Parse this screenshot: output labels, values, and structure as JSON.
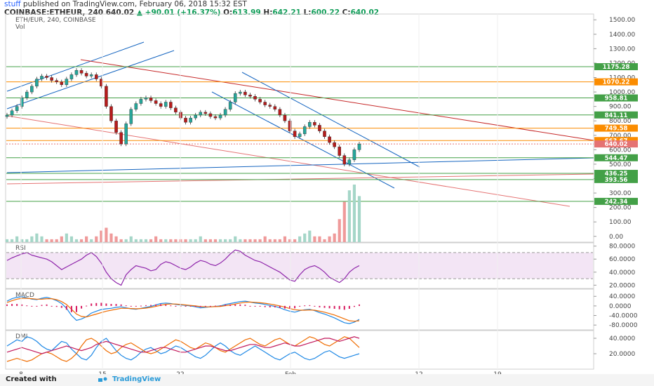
{
  "header": {
    "user": "stuff",
    "published": "published on TradingView.com, February 06, 2018 15:32 EST",
    "symbol": "COINBASE:ETHEUR, 240",
    "last": "640.02",
    "change": "+90.01 (+16.37%)",
    "o_label": "O:",
    "o_value": "613.99",
    "h_label": "H:",
    "h_value": "642.21",
    "l_label": "L:",
    "l_value": "600.22",
    "c_label": "C:",
    "c_value": "640.02"
  },
  "pane_labels": {
    "main": "ETH/EUR, 240, COINBASE",
    "vol": "Vol",
    "rsi": "RSI",
    "macd": "MACD",
    "dmi": "DMI"
  },
  "footer": {
    "created": "Created with",
    "brand": "TradingView"
  },
  "colors": {
    "price_up": "#26a69a",
    "price_down": "#b71c1c",
    "trend_blue": "#1565c0",
    "trend_red": "#c62828",
    "level_green": "#43a047",
    "level_orange": "#fb8c00",
    "rsi_line": "#8e24aa",
    "rsi_band": "#f3e5f5",
    "macd_blue": "#1e88e5",
    "macd_orange": "#ef6c00",
    "macd_hist": "#d81b60",
    "dmi_blue": "#1e88e5",
    "dmi_orange": "#ef6c00",
    "dmi_magenta": "#c2185b"
  },
  "chart_data": [
    {
      "type": "line",
      "title": "ETH/EUR, 240, COINBASE",
      "ylim": [
        -40,
        1540
      ],
      "y_ticks": [
        0,
        100,
        200,
        300,
        400,
        500,
        600,
        700,
        800,
        900,
        1000,
        1100,
        1200,
        1300,
        1400,
        1500
      ],
      "y_tick_labels": [
        "0.00",
        "100.00",
        "200.00",
        "300.00",
        "400.00",
        "500.00",
        "600.00",
        "700.00",
        "800.00",
        "900.00",
        "1000.00",
        "1100.00",
        "1200.00",
        "1300.00",
        "1400.00",
        "1500.00"
      ],
      "x_tick_labels": [
        "8",
        "15",
        "22",
        "Feb",
        "12",
        "19"
      ],
      "levels": [
        {
          "value": 1175.28,
          "label": "1175.28",
          "color": "#43a047"
        },
        {
          "value": 1070.22,
          "label": "1070.22",
          "color": "#fb8c00"
        },
        {
          "value": 958.81,
          "label": "958.81",
          "color": "#43a047"
        },
        {
          "value": 841.11,
          "label": "841.11",
          "color": "#43a047"
        },
        {
          "value": 749.58,
          "label": "749.58",
          "color": "#fb8c00"
        },
        {
          "value": 663.67,
          "label": "663.67",
          "color": "#fb8c00"
        },
        {
          "value": 640.02,
          "label": "640.02",
          "color": "#e57373"
        },
        {
          "value": 544.47,
          "label": "544.47",
          "color": "#43a047"
        },
        {
          "value": 436.25,
          "label": "436.25",
          "color": "#43a047"
        },
        {
          "value": 393.56,
          "label": "393.56",
          "color": "#43a047"
        },
        {
          "value": 242.34,
          "label": "242.34",
          "color": "#43a047"
        }
      ],
      "series": [
        {
          "values": [
            840,
            870,
            900,
            960,
            1000,
            1040,
            1090,
            1110,
            1100,
            1080,
            1070,
            1050,
            1090,
            1120,
            1150,
            1130,
            1110,
            1120,
            1090,
            1040,
            900,
            800,
            720,
            640,
            780,
            880,
            920,
            950,
            960,
            940,
            920,
            900,
            930,
            890,
            860,
            820,
            790,
            820,
            840,
            860,
            850,
            830,
            820,
            840,
            880,
            930,
            990,
            1000,
            980,
            970,
            950,
            930,
            910,
            900,
            880,
            840,
            800,
            730,
            690,
            710,
            760,
            790,
            770,
            730,
            690,
            650,
            620,
            560,
            500,
            530,
            600,
            640
          ]
        }
      ]
    },
    {
      "type": "bar",
      "title": "Vol",
      "values": [
        1,
        1,
        2,
        1,
        1,
        2,
        3,
        2,
        1,
        1,
        1,
        2,
        3,
        2,
        1,
        1,
        2,
        1,
        2,
        4,
        5,
        3,
        2,
        1,
        1,
        2,
        1,
        1,
        1,
        1,
        2,
        1,
        1,
        1,
        1,
        1,
        1,
        1,
        1,
        2,
        1,
        1,
        1,
        1,
        1,
        1,
        2,
        1,
        1,
        1,
        1,
        1,
        2,
        1,
        1,
        1,
        2,
        1,
        1,
        2,
        3,
        4,
        2,
        2,
        1,
        2,
        3,
        8,
        14,
        18,
        20,
        16
      ]
    },
    {
      "type": "line",
      "title": "RSI",
      "ylim": [
        15,
        85
      ],
      "y_ticks": [
        20,
        40,
        60,
        80
      ],
      "y_tick_labels": [
        "20.0000",
        "40.0000",
        "60.0000",
        "80.0000"
      ],
      "series": [
        {
          "values": [
            58,
            62,
            65,
            68,
            70,
            66,
            64,
            62,
            60,
            56,
            50,
            44,
            48,
            52,
            56,
            60,
            66,
            70,
            64,
            54,
            40,
            30,
            24,
            20,
            36,
            44,
            50,
            48,
            46,
            42,
            44,
            52,
            56,
            54,
            50,
            46,
            44,
            48,
            54,
            58,
            56,
            52,
            50,
            54,
            60,
            68,
            74,
            72,
            66,
            62,
            58,
            56,
            52,
            48,
            44,
            40,
            34,
            28,
            26,
            36,
            44,
            48,
            50,
            46,
            40,
            32,
            28,
            24,
            30,
            40,
            46,
            50
          ]
        }
      ]
    },
    {
      "type": "line",
      "title": "MACD",
      "ylim": [
        -100,
        70
      ],
      "y_ticks": [
        -80,
        -40,
        0,
        40
      ],
      "y_tick_labels": [
        "-80.0000",
        "-40.0000",
        "0.0000",
        "40.0000"
      ],
      "series": [
        {
          "values": [
            20,
            30,
            36,
            38,
            34,
            28,
            26,
            32,
            36,
            30,
            22,
            10,
            -10,
            -40,
            -60,
            -55,
            -45,
            -30,
            -22,
            -15,
            -12,
            -10,
            -6,
            -4,
            -8,
            -12,
            -14,
            -10,
            -6,
            -2,
            4,
            10,
            12,
            10,
            6,
            4,
            2,
            0,
            -4,
            -8,
            -6,
            -4,
            -2,
            0,
            6,
            10,
            14,
            18,
            20,
            16,
            12,
            10,
            6,
            2,
            -2,
            -8,
            -16,
            -22,
            -26,
            -20,
            -16,
            -14,
            -20,
            -28,
            -34,
            -42,
            -50,
            -60,
            -70,
            -74,
            -68,
            -56
          ]
        },
        {
          "values": [
            14,
            22,
            28,
            32,
            32,
            30,
            28,
            28,
            30,
            30,
            26,
            18,
            6,
            -14,
            -34,
            -44,
            -46,
            -40,
            -34,
            -28,
            -22,
            -18,
            -14,
            -10,
            -10,
            -11,
            -12,
            -11,
            -9,
            -6,
            -2,
            3,
            7,
            8,
            8,
            6,
            4,
            2,
            0,
            -3,
            -4,
            -4,
            -3,
            -2,
            1,
            4,
            8,
            12,
            15,
            16,
            15,
            13,
            11,
            8,
            4,
            0,
            -5,
            -11,
            -16,
            -18,
            -18,
            -17,
            -18,
            -22,
            -26,
            -32,
            -38,
            -46,
            -54,
            -62,
            -64,
            -62
          ]
        }
      ]
    },
    {
      "type": "line",
      "title": "DMI",
      "ylim": [
        0,
        50
      ],
      "y_ticks": [
        20,
        40
      ],
      "y_tick_labels": [
        "20.0000",
        "40.0000"
      ],
      "series": [
        {
          "values": [
            30,
            34,
            38,
            36,
            42,
            40,
            36,
            30,
            26,
            24,
            30,
            36,
            34,
            26,
            20,
            14,
            12,
            18,
            28,
            36,
            40,
            32,
            24,
            18,
            14,
            12,
            16,
            22,
            26,
            28,
            24,
            20,
            22,
            26,
            30,
            28,
            24,
            20,
            16,
            14,
            18,
            24,
            30,
            34,
            30,
            24,
            20,
            18,
            22,
            26,
            30,
            26,
            22,
            18,
            14,
            12,
            16,
            20,
            22,
            18,
            14,
            12,
            14,
            18,
            22,
            24,
            20,
            16,
            14,
            16,
            18,
            20
          ]
        },
        {
          "values": [
            10,
            12,
            14,
            12,
            10,
            12,
            16,
            20,
            22,
            20,
            16,
            12,
            10,
            14,
            20,
            30,
            38,
            40,
            36,
            30,
            24,
            20,
            22,
            28,
            32,
            34,
            30,
            26,
            22,
            20,
            22,
            26,
            30,
            34,
            38,
            36,
            32,
            28,
            26,
            30,
            34,
            32,
            28,
            24,
            22,
            26,
            30,
            34,
            38,
            40,
            36,
            32,
            30,
            34,
            38,
            40,
            36,
            32,
            30,
            34,
            38,
            42,
            40,
            36,
            32,
            30,
            34,
            38,
            42,
            40,
            34,
            28
          ]
        },
        {
          "values": [
            22,
            24,
            26,
            28,
            26,
            24,
            22,
            20,
            22,
            24,
            26,
            28,
            30,
            28,
            26,
            24,
            26,
            28,
            32,
            34,
            36,
            34,
            32,
            30,
            28,
            26,
            24,
            22,
            22,
            24,
            26,
            28,
            28,
            26,
            24,
            22,
            22,
            24,
            26,
            28,
            30,
            30,
            28,
            26,
            24,
            24,
            26,
            28,
            30,
            32,
            32,
            30,
            28,
            28,
            30,
            32,
            34,
            32,
            30,
            30,
            32,
            34,
            36,
            38,
            40,
            40,
            38,
            36,
            38,
            40,
            42,
            40
          ]
        }
      ]
    }
  ]
}
